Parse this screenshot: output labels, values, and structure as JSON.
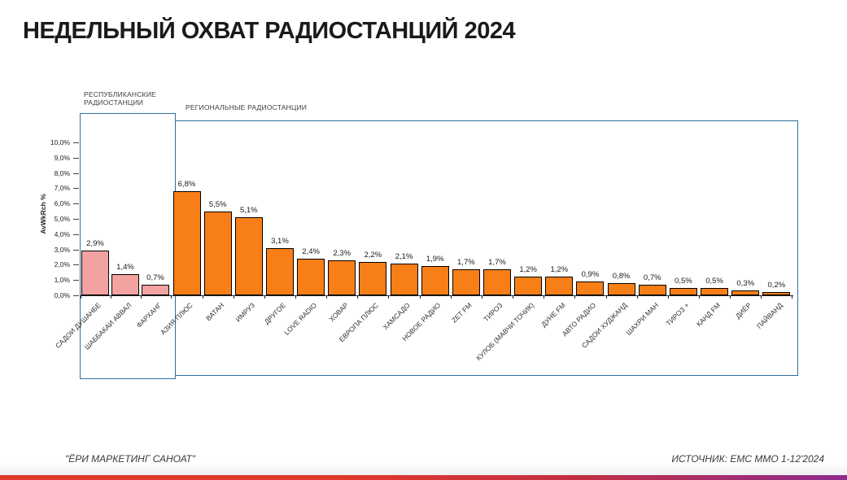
{
  "page": {
    "title": "НЕДЕЛЬНЫЙ ОХВАТ РАДИОСТАНЦИЙ 2024",
    "footer_left": "\"ЁРИ МАРКЕТИНГ САНОАТ\"",
    "footer_right": "ИСТОЧНИК: EMC MMO 1-12'2024"
  },
  "colors": {
    "republican_fill": "#f2a2a0",
    "regional_fill": "#f87e17",
    "bar_border": "#000000",
    "box_border": "#2e6f9f",
    "gradient_left": "#e2392b",
    "gradient_mid": "#c22f43",
    "gradient_right": "#8c2b8e"
  },
  "chart_data": {
    "type": "bar",
    "title": "НЕДЕЛЬНЫЙ ОХВАТ РАДИОСТАНЦИЙ 2024",
    "xlabel": "",
    "ylabel": "AvWkRch %",
    "ylim": [
      0,
      10
    ],
    "ytick_step": 1,
    "ytick_labels": [
      "0,0%",
      "1,0%",
      "2,0%",
      "3,0%",
      "4,0%",
      "5,0%",
      "6,0%",
      "7,0%",
      "8,0%",
      "9,0%",
      "10,0%"
    ],
    "decimal_separator": ",",
    "grid": false,
    "legend": false,
    "groups": [
      {
        "name": "РЕСПУБЛИКАНСКИЕ РАДИОСТАНЦИИ",
        "fill": "#f2a2a0",
        "bars": [
          {
            "category": "САДОИ ДУШАНБЕ",
            "value": 2.9,
            "label": "2,9%"
          },
          {
            "category": "ШАББАКАИ АВВАЛ",
            "value": 1.4,
            "label": "1,4%"
          },
          {
            "category": "ФАРХАНГ",
            "value": 0.7,
            "label": "0,7%"
          }
        ]
      },
      {
        "name": "РЕГИОНАЛЬНЫЕ РАДИОСТАНЦИИ",
        "fill": "#f87e17",
        "bars": [
          {
            "category": "АЗИЯ ПЛЮС",
            "value": 6.8,
            "label": "6,8%"
          },
          {
            "category": "ВАТАН",
            "value": 5.5,
            "label": "5,5%"
          },
          {
            "category": "ИМРУЗ",
            "value": 5.1,
            "label": "5,1%"
          },
          {
            "category": "ДРУГОЕ",
            "value": 3.1,
            "label": "3,1%"
          },
          {
            "category": "LOVE RADIO",
            "value": 2.4,
            "label": "2,4%"
          },
          {
            "category": "ХОВАР",
            "value": 2.3,
            "label": "2,3%"
          },
          {
            "category": "ЕВРОПА ПЛЮС",
            "value": 2.2,
            "label": "2,2%"
          },
          {
            "category": "ХАМСАДО",
            "value": 2.1,
            "label": "2,1%"
          },
          {
            "category": "НОВОЕ РАДИО",
            "value": 1.9,
            "label": "1,9%"
          },
          {
            "category": "ZET FM",
            "value": 1.7,
            "label": "1,7%"
          },
          {
            "category": "ТИРОЗ",
            "value": 1.7,
            "label": "1,7%"
          },
          {
            "category": "КУЛОБ (МАВЧИ ТОЧИК)",
            "value": 1.2,
            "label": "1,2%"
          },
          {
            "category": "ДУНЕ FM",
            "value": 1.2,
            "label": "1,2%"
          },
          {
            "category": "АВТО РАДИО",
            "value": 0.9,
            "label": "0,9%"
          },
          {
            "category": "САДОИ ХУДЖАНД",
            "value": 0.8,
            "label": "0,8%"
          },
          {
            "category": "ШАХРИ МАН",
            "value": 0.7,
            "label": "0,7%"
          },
          {
            "category": "ТИРОЗ +",
            "value": 0.5,
            "label": "0,5%"
          },
          {
            "category": "КАНД FM",
            "value": 0.5,
            "label": "0,5%"
          },
          {
            "category": "ДИЁР",
            "value": 0.3,
            "label": "0,3%"
          },
          {
            "category": "ПАЙВАНД",
            "value": 0.2,
            "label": "0,2%"
          }
        ]
      }
    ]
  }
}
